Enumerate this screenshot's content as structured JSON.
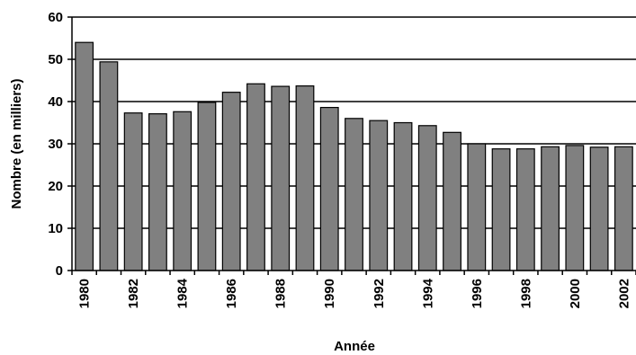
{
  "chart_data": {
    "type": "bar",
    "categories": [
      "1980",
      "1981",
      "1982",
      "1983",
      "1984",
      "1985",
      "1986",
      "1987",
      "1988",
      "1989",
      "1990",
      "1991",
      "1992",
      "1993",
      "1994",
      "1995",
      "1996",
      "1997",
      "1998",
      "1999",
      "2000",
      "2001",
      "2002"
    ],
    "tick_labels_shown": [
      "1980",
      "1982",
      "1984",
      "1986",
      "1988",
      "1990",
      "1992",
      "1994",
      "1996",
      "1998",
      "2000",
      "2002"
    ],
    "values": [
      54.0,
      49.4,
      37.3,
      37.1,
      37.6,
      39.8,
      42.2,
      44.2,
      43.6,
      43.7,
      38.6,
      36.0,
      35.5,
      35.0,
      34.3,
      32.7,
      30.0,
      28.8,
      28.8,
      29.3,
      29.6,
      29.2,
      29.3
    ],
    "xlabel": "Année",
    "ylabel": "Nombre (en milliers)",
    "ylim": [
      0,
      60
    ],
    "yticks": [
      0,
      10,
      20,
      30,
      40,
      50,
      60
    ],
    "grid": "horizontal",
    "bar_color": "#808080",
    "bar_edge_color": "#000000"
  }
}
